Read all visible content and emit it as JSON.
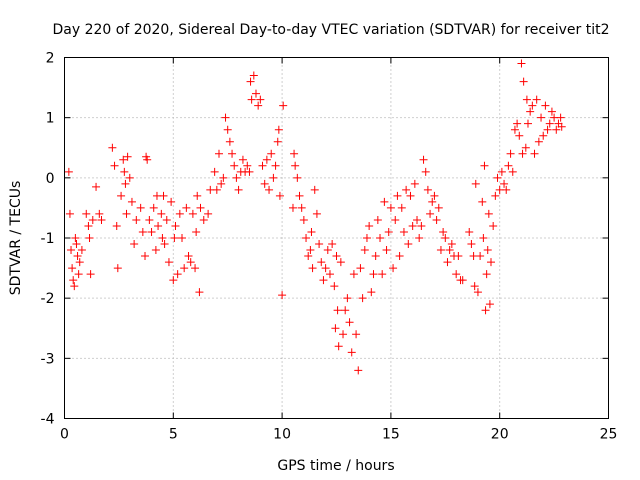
{
  "chart_data": {
    "type": "scatter",
    "title": "Day 220 of 2020, Sidereal Day-to-day VTEC variation (SDTVAR) for receiver tit2",
    "xlabel": "GPS time / hours",
    "ylabel": "SDTVAR / TECUs",
    "xlim": [
      0,
      25
    ],
    "ylim": [
      -4,
      2
    ],
    "xticks": [
      0,
      5,
      10,
      15,
      20,
      25
    ],
    "yticks": [
      -4,
      -3,
      -2,
      -1,
      0,
      1,
      2
    ],
    "xtick_labels": [
      "0",
      "5",
      "10",
      "15",
      "20",
      "25"
    ],
    "ytick_labels": [
      "-4",
      "-3",
      "-2",
      "-1",
      "0",
      "1",
      "2"
    ],
    "grid": true,
    "marker": "+",
    "series": [
      {
        "name": "SDTVAR",
        "color": "#ff0000",
        "points": [
          [
            0.2,
            0.1
          ],
          [
            0.25,
            -0.6
          ],
          [
            0.3,
            -1.2
          ],
          [
            0.35,
            -1.5
          ],
          [
            0.4,
            -1.7
          ],
          [
            0.45,
            -1.8
          ],
          [
            0.5,
            -1.0
          ],
          [
            0.55,
            -1.1
          ],
          [
            0.6,
            -1.3
          ],
          [
            0.65,
            -1.6
          ],
          [
            0.7,
            -1.4
          ],
          [
            0.8,
            -1.2
          ],
          [
            1.0,
            -0.6
          ],
          [
            1.1,
            -0.8
          ],
          [
            1.15,
            -1.0
          ],
          [
            1.2,
            -1.6
          ],
          [
            1.3,
            -0.7
          ],
          [
            1.45,
            -0.15
          ],
          [
            1.6,
            -0.6
          ],
          [
            1.7,
            -0.7
          ],
          [
            2.2,
            0.5
          ],
          [
            2.3,
            0.2
          ],
          [
            2.4,
            -0.8
          ],
          [
            2.45,
            -1.5
          ],
          [
            2.6,
            -0.3
          ],
          [
            2.7,
            0.3
          ],
          [
            2.75,
            0.1
          ],
          [
            2.8,
            -0.1
          ],
          [
            2.85,
            -0.6
          ],
          [
            2.9,
            0.35
          ],
          [
            3.0,
            0.0
          ],
          [
            3.1,
            -0.4
          ],
          [
            3.2,
            -1.1
          ],
          [
            3.3,
            -0.7
          ],
          [
            3.5,
            -0.5
          ],
          [
            3.6,
            -0.9
          ],
          [
            3.7,
            -1.3
          ],
          [
            3.75,
            0.35
          ],
          [
            3.8,
            0.3
          ],
          [
            3.9,
            -0.7
          ],
          [
            4.0,
            -0.9
          ],
          [
            4.1,
            -0.5
          ],
          [
            4.2,
            -1.2
          ],
          [
            4.25,
            -0.3
          ],
          [
            4.3,
            -0.8
          ],
          [
            4.45,
            -0.6
          ],
          [
            4.5,
            -1.0
          ],
          [
            4.55,
            -0.3
          ],
          [
            4.6,
            -1.1
          ],
          [
            4.7,
            -0.7
          ],
          [
            4.8,
            -1.4
          ],
          [
            4.9,
            -0.4
          ],
          [
            5.0,
            -1.7
          ],
          [
            5.05,
            -1.0
          ],
          [
            5.1,
            -0.8
          ],
          [
            5.2,
            -1.6
          ],
          [
            5.3,
            -0.6
          ],
          [
            5.4,
            -1.0
          ],
          [
            5.5,
            -1.5
          ],
          [
            5.6,
            -0.5
          ],
          [
            5.7,
            -1.3
          ],
          [
            5.8,
            -1.4
          ],
          [
            5.9,
            -0.6
          ],
          [
            6.0,
            -1.5
          ],
          [
            6.05,
            -0.9
          ],
          [
            6.1,
            -0.3
          ],
          [
            6.2,
            -1.9
          ],
          [
            6.25,
            -0.5
          ],
          [
            6.4,
            -0.7
          ],
          [
            6.6,
            -0.6
          ],
          [
            6.7,
            -0.2
          ],
          [
            6.9,
            0.1
          ],
          [
            7.0,
            -0.2
          ],
          [
            7.1,
            0.4
          ],
          [
            7.2,
            -0.1
          ],
          [
            7.3,
            0.0
          ],
          [
            7.4,
            1.0
          ],
          [
            7.5,
            0.8
          ],
          [
            7.6,
            0.6
          ],
          [
            7.7,
            0.4
          ],
          [
            7.8,
            0.2
          ],
          [
            7.9,
            0.0
          ],
          [
            8.0,
            -0.2
          ],
          [
            8.1,
            0.1
          ],
          [
            8.2,
            0.3
          ],
          [
            8.3,
            0.1
          ],
          [
            8.4,
            0.2
          ],
          [
            8.5,
            0.1
          ],
          [
            8.55,
            1.6
          ],
          [
            8.6,
            1.3
          ],
          [
            8.7,
            1.7
          ],
          [
            8.8,
            1.4
          ],
          [
            8.9,
            1.2
          ],
          [
            9.0,
            1.3
          ],
          [
            9.1,
            0.2
          ],
          [
            9.2,
            -0.1
          ],
          [
            9.3,
            0.3
          ],
          [
            9.4,
            -0.2
          ],
          [
            9.5,
            0.4
          ],
          [
            9.6,
            0.0
          ],
          [
            9.7,
            0.2
          ],
          [
            9.8,
            0.6
          ],
          [
            9.85,
            0.8
          ],
          [
            9.9,
            -0.3
          ],
          [
            10.0,
            -1.95
          ],
          [
            10.05,
            1.2
          ],
          [
            10.5,
            -0.5
          ],
          [
            10.55,
            0.4
          ],
          [
            10.6,
            0.2
          ],
          [
            10.7,
            0.0
          ],
          [
            10.8,
            -0.3
          ],
          [
            10.9,
            -0.5
          ],
          [
            11.0,
            -0.7
          ],
          [
            11.1,
            -1.0
          ],
          [
            11.2,
            -1.3
          ],
          [
            11.3,
            -1.2
          ],
          [
            11.35,
            -0.9
          ],
          [
            11.4,
            -1.5
          ],
          [
            11.5,
            -0.2
          ],
          [
            11.6,
            -0.6
          ],
          [
            11.7,
            -1.1
          ],
          [
            11.8,
            -1.4
          ],
          [
            11.9,
            -1.7
          ],
          [
            12.0,
            -1.5
          ],
          [
            12.1,
            -1.2
          ],
          [
            12.2,
            -1.6
          ],
          [
            12.3,
            -1.1
          ],
          [
            12.4,
            -1.8
          ],
          [
            12.45,
            -2.5
          ],
          [
            12.5,
            -1.3
          ],
          [
            12.55,
            -2.2
          ],
          [
            12.6,
            -2.8
          ],
          [
            12.7,
            -1.4
          ],
          [
            12.8,
            -2.6
          ],
          [
            12.9,
            -2.2
          ],
          [
            13.0,
            -2.0
          ],
          [
            13.1,
            -2.4
          ],
          [
            13.2,
            -2.9
          ],
          [
            13.3,
            -1.6
          ],
          [
            13.4,
            -2.6
          ],
          [
            13.5,
            -3.2
          ],
          [
            13.6,
            -1.5
          ],
          [
            13.7,
            -2.0
          ],
          [
            13.8,
            -1.2
          ],
          [
            13.9,
            -1.0
          ],
          [
            14.0,
            -0.8
          ],
          [
            14.1,
            -1.9
          ],
          [
            14.2,
            -1.6
          ],
          [
            14.3,
            -1.3
          ],
          [
            14.4,
            -0.7
          ],
          [
            14.5,
            -1.0
          ],
          [
            14.6,
            -1.6
          ],
          [
            14.7,
            -0.4
          ],
          [
            14.8,
            -1.2
          ],
          [
            14.9,
            -0.9
          ],
          [
            15.0,
            -0.5
          ],
          [
            15.1,
            -1.5
          ],
          [
            15.2,
            -0.7
          ],
          [
            15.3,
            -0.3
          ],
          [
            15.4,
            -1.3
          ],
          [
            15.5,
            -0.5
          ],
          [
            15.6,
            -0.9
          ],
          [
            15.7,
            -0.2
          ],
          [
            15.8,
            -1.1
          ],
          [
            15.9,
            -0.3
          ],
          [
            16.0,
            -0.8
          ],
          [
            16.1,
            -0.1
          ],
          [
            16.2,
            -0.7
          ],
          [
            16.3,
            -1.0
          ],
          [
            16.4,
            -0.8
          ],
          [
            16.5,
            0.3
          ],
          [
            16.6,
            0.1
          ],
          [
            16.7,
            -0.2
          ],
          [
            16.8,
            -0.6
          ],
          [
            16.9,
            -0.4
          ],
          [
            17.0,
            -0.3
          ],
          [
            17.1,
            -0.7
          ],
          [
            17.2,
            -0.5
          ],
          [
            17.3,
            -1.2
          ],
          [
            17.4,
            -0.9
          ],
          [
            17.5,
            -1.0
          ],
          [
            17.6,
            -1.4
          ],
          [
            17.7,
            -1.2
          ],
          [
            17.8,
            -1.1
          ],
          [
            17.9,
            -1.3
          ],
          [
            18.0,
            -1.6
          ],
          [
            18.1,
            -1.3
          ],
          [
            18.2,
            -1.7
          ],
          [
            18.3,
            -1.7
          ],
          [
            18.6,
            -0.9
          ],
          [
            18.7,
            -1.1
          ],
          [
            18.8,
            -1.3
          ],
          [
            18.85,
            -1.8
          ],
          [
            18.9,
            -0.1
          ],
          [
            19.0,
            -1.9
          ],
          [
            19.1,
            -1.3
          ],
          [
            19.2,
            -0.4
          ],
          [
            19.25,
            -1.0
          ],
          [
            19.3,
            0.2
          ],
          [
            19.35,
            -2.2
          ],
          [
            19.4,
            -1.6
          ],
          [
            19.45,
            -1.2
          ],
          [
            19.5,
            -0.6
          ],
          [
            19.55,
            -2.1
          ],
          [
            19.6,
            -1.4
          ],
          [
            19.7,
            -0.8
          ],
          [
            19.8,
            -0.3
          ],
          [
            19.9,
            0.0
          ],
          [
            20.0,
            -0.2
          ],
          [
            20.1,
            0.1
          ],
          [
            20.2,
            -0.1
          ],
          [
            20.3,
            -0.2
          ],
          [
            20.4,
            0.2
          ],
          [
            20.5,
            0.4
          ],
          [
            20.6,
            0.1
          ],
          [
            20.7,
            0.8
          ],
          [
            20.8,
            0.9
          ],
          [
            20.9,
            0.7
          ],
          [
            21.0,
            1.9
          ],
          [
            21.05,
            0.4
          ],
          [
            21.1,
            1.6
          ],
          [
            21.2,
            0.5
          ],
          [
            21.25,
            1.3
          ],
          [
            21.3,
            0.9
          ],
          [
            21.4,
            1.1
          ],
          [
            21.5,
            1.2
          ],
          [
            21.6,
            0.4
          ],
          [
            21.7,
            1.3
          ],
          [
            21.8,
            0.6
          ],
          [
            21.9,
            1.0
          ],
          [
            22.0,
            0.7
          ],
          [
            22.1,
            1.2
          ],
          [
            22.2,
            0.8
          ],
          [
            22.3,
            0.9
          ],
          [
            22.4,
            1.1
          ],
          [
            22.5,
            1.0
          ],
          [
            22.6,
            0.8
          ],
          [
            22.7,
            0.9
          ],
          [
            22.8,
            1.0
          ],
          [
            22.85,
            0.85
          ]
        ]
      }
    ]
  }
}
